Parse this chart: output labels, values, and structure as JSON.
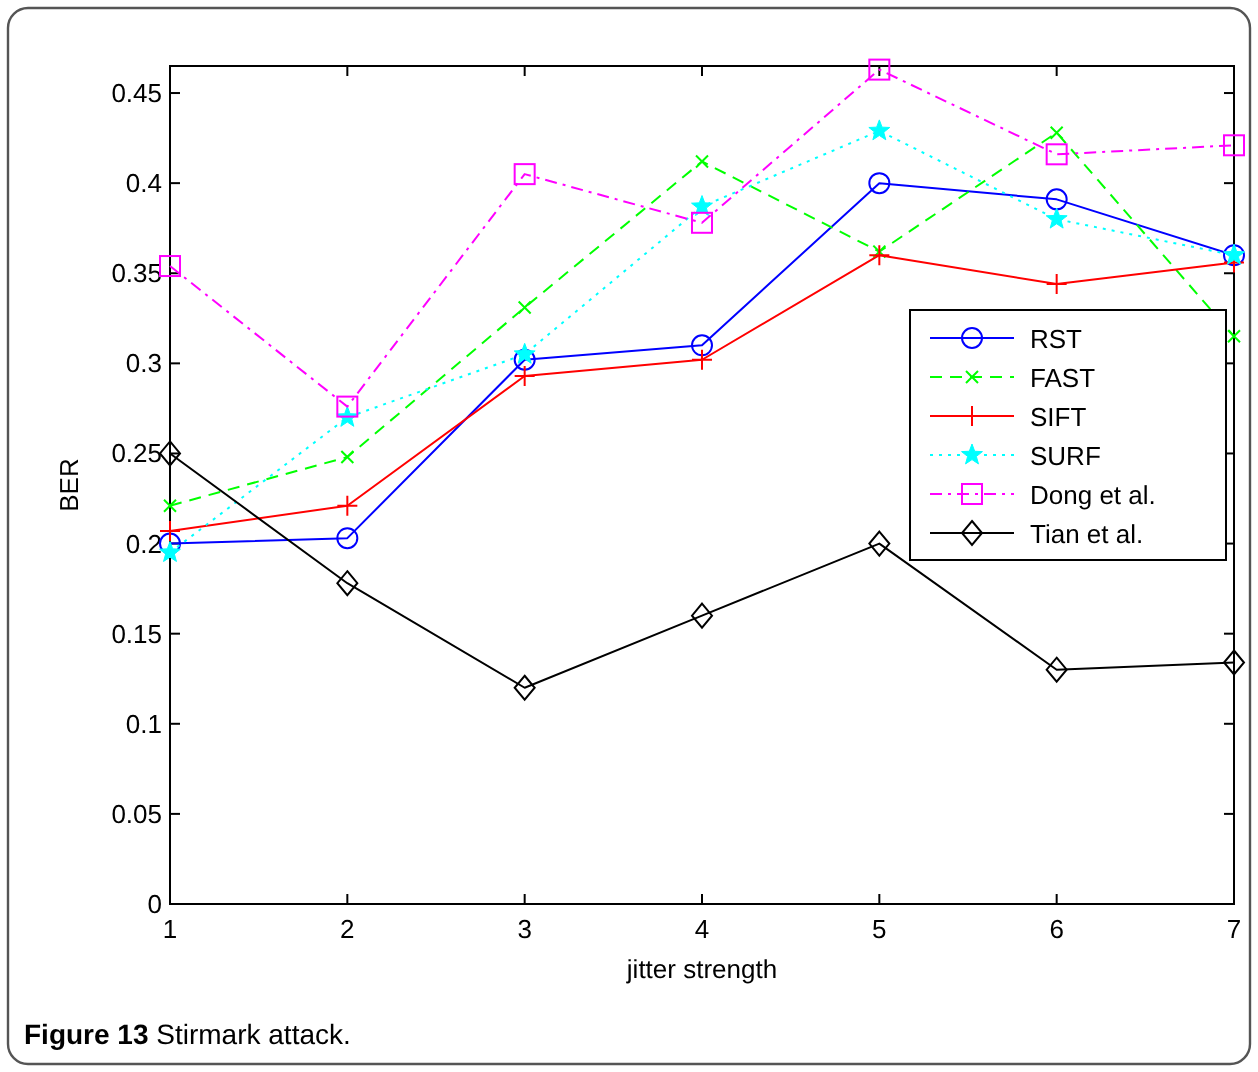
{
  "chart_data": {
    "type": "line",
    "title": "Figure 13 Stirmark attack.",
    "xlabel": "jitter strength",
    "ylabel": "BER",
    "x": [
      1,
      2,
      3,
      4,
      5,
      6,
      7
    ],
    "xlim": [
      1,
      7
    ],
    "xticks": [
      1,
      2,
      3,
      4,
      5,
      6,
      7
    ],
    "ylim": [
      0,
      0.465
    ],
    "yticks": [
      0,
      0.05,
      0.1,
      0.15,
      0.2,
      0.25,
      0.3,
      0.35,
      0.4,
      0.45
    ],
    "grid": false,
    "legend": "right",
    "series": [
      {
        "name": "RST",
        "color": "#0000ff",
        "marker": "circle",
        "line_style": "solid",
        "values": [
          0.2,
          0.203,
          0.302,
          0.31,
          0.4,
          0.391,
          0.36
        ]
      },
      {
        "name": "FAST",
        "color": "#00ff00",
        "marker": "x",
        "line_style": "dashed",
        "values": [
          0.221,
          0.248,
          0.331,
          0.412,
          0.362,
          0.428,
          0.315
        ]
      },
      {
        "name": "SIFT",
        "color": "#ff0000",
        "marker": "cross",
        "line_style": "solid",
        "values": [
          0.207,
          0.221,
          0.293,
          0.302,
          0.36,
          0.344,
          0.356
        ]
      },
      {
        "name": "SURF",
        "color": "#00ffff",
        "marker": "star",
        "line_style": "dotted",
        "values": [
          0.195,
          0.27,
          0.305,
          0.387,
          0.429,
          0.38,
          0.36
        ]
      },
      {
        "name": "Dong et al.",
        "color": "#ff00ff",
        "marker": "square",
        "line_style": "dashdot",
        "values": [
          0.354,
          0.276,
          0.405,
          0.378,
          0.463,
          0.416,
          0.421
        ]
      },
      {
        "name": "Tian et al.",
        "color": "#000000",
        "marker": "diamond",
        "line_style": "solid",
        "values": [
          0.25,
          0.178,
          0.12,
          0.16,
          0.2,
          0.13,
          0.134
        ]
      }
    ]
  }
}
